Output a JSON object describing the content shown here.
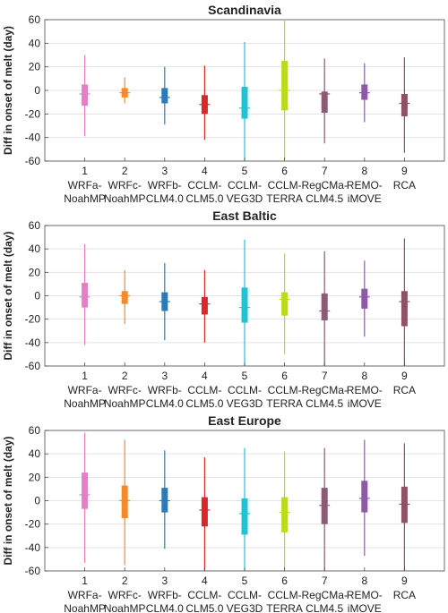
{
  "chart_data": [
    {
      "type": "box",
      "title": "Scandinavia",
      "ylabel": "Diff in onset of melt (day)",
      "ylim": [
        -60,
        60
      ],
      "yticks": [
        -60,
        -40,
        -20,
        0,
        20,
        40,
        60
      ],
      "grid": true,
      "categories": [
        "1",
        "2",
        "3",
        "4",
        "5",
        "6",
        "7",
        "8",
        "9"
      ],
      "category_labels": [
        [
          "WRFa-",
          "NoahMP"
        ],
        [
          "WRFc-",
          "NoahMP"
        ],
        [
          "WRFb-",
          "CLM4.0"
        ],
        [
          "CCLM-",
          "CLM5.0"
        ],
        [
          "CCLM-",
          "VEG3D"
        ],
        [
          "CCLM-",
          "TERRA"
        ],
        [
          "RegCMa-",
          "CLM4.5"
        ],
        [
          "REMO-",
          "iMOVE"
        ],
        [
          "RCA"
        ]
      ],
      "series": [
        {
          "whisker_low": -39,
          "q1": -13,
          "median": -3,
          "q3": 5,
          "whisker_high": 30
        },
        {
          "whisker_low": -11,
          "q1": -6,
          "median": -2,
          "q3": 2,
          "whisker_high": 11
        },
        {
          "whisker_low": -29,
          "q1": -11,
          "median": -6,
          "q3": 2,
          "whisker_high": 20
        },
        {
          "whisker_low": -42,
          "q1": -20,
          "median": -12,
          "q3": -4,
          "whisker_high": 21
        },
        {
          "whisker_low": -60,
          "q1": -24,
          "median": -15,
          "q3": 3,
          "whisker_high": 41
        },
        {
          "whisker_low": -60,
          "q1": -17,
          "median": 0,
          "q3": 25,
          "whisker_high": 60
        },
        {
          "whisker_low": -45,
          "q1": -19,
          "median": -3,
          "q3": -1,
          "whisker_high": 27
        },
        {
          "whisker_low": -27,
          "q1": -8,
          "median": -2,
          "q3": 5,
          "whisker_high": 23
        },
        {
          "whisker_low": -53,
          "q1": -22,
          "median": -11,
          "q3": -3,
          "whisker_high": 28
        }
      ]
    },
    {
      "type": "box",
      "title": "East Baltic",
      "ylabel": "Diff in onset of melt (day)",
      "ylim": [
        -60,
        60
      ],
      "yticks": [
        -60,
        -40,
        -20,
        0,
        20,
        40,
        60
      ],
      "grid": true,
      "categories": [
        "1",
        "2",
        "3",
        "4",
        "5",
        "6",
        "7",
        "8",
        "9"
      ],
      "category_labels": [
        [
          "WRFa-",
          "NoahMP"
        ],
        [
          "WRFc-",
          "NoahMP"
        ],
        [
          "WRFb-",
          "CLM4.0"
        ],
        [
          "CCLM-",
          "CLM5.0"
        ],
        [
          "CCLM-",
          "VEG3D"
        ],
        [
          "CCLM-",
          "TERRA"
        ],
        [
          "RegCMa-",
          "CLM4.5"
        ],
        [
          "REMO-",
          "iMOVE"
        ],
        [
          "RCA"
        ]
      ],
      "series": [
        {
          "whisker_low": -42,
          "q1": -10,
          "median": -1,
          "q3": 11,
          "whisker_high": 44
        },
        {
          "whisker_low": -24,
          "q1": -7,
          "median": 0,
          "q3": 4,
          "whisker_high": 22
        },
        {
          "whisker_low": -38,
          "q1": -13,
          "median": -5,
          "q3": 3,
          "whisker_high": 28
        },
        {
          "whisker_low": -40,
          "q1": -16,
          "median": -7,
          "q3": -1,
          "whisker_high": 22
        },
        {
          "whisker_low": -60,
          "q1": -23,
          "median": -10,
          "q3": 7,
          "whisker_high": 48
        },
        {
          "whisker_low": -50,
          "q1": -17,
          "median": -3,
          "q3": 3,
          "whisker_high": 36
        },
        {
          "whisker_low": -60,
          "q1": -21,
          "median": -13,
          "q3": 2,
          "whisker_high": 38
        },
        {
          "whisker_low": -35,
          "q1": -11,
          "median": -1,
          "q3": 6,
          "whisker_high": 30
        },
        {
          "whisker_low": -60,
          "q1": -26,
          "median": -5,
          "q3": 4,
          "whisker_high": 49
        }
      ]
    },
    {
      "type": "box",
      "title": "East Europe",
      "ylabel": "Diff in onset of melt (day)",
      "ylim": [
        -60,
        60
      ],
      "yticks": [
        -60,
        -40,
        -20,
        0,
        20,
        40,
        60
      ],
      "grid": true,
      "categories": [
        "1",
        "2",
        "3",
        "4",
        "5",
        "6",
        "7",
        "8",
        "9"
      ],
      "category_labels": [
        [
          "WRFa-",
          "NoahMP"
        ],
        [
          "WRFc-",
          "NoahMP"
        ],
        [
          "WRFb-",
          "CLM4.0"
        ],
        [
          "CCLM-",
          "CLM5.0"
        ],
        [
          "CCLM-",
          "VEG3D"
        ],
        [
          "CCLM-",
          "TERRA"
        ],
        [
          "RegCMa-",
          "CLM4.5"
        ],
        [
          "REMO-",
          "iMOVE"
        ],
        [
          "RCA"
        ]
      ],
      "series": [
        {
          "whisker_low": -53,
          "q1": -7,
          "median": 5,
          "q3": 24,
          "whisker_high": 58
        },
        {
          "whisker_low": -55,
          "q1": -15,
          "median": 0,
          "q3": 13,
          "whisker_high": 52
        },
        {
          "whisker_low": -41,
          "q1": -10,
          "median": 0,
          "q3": 11,
          "whisker_high": 43
        },
        {
          "whisker_low": -60,
          "q1": -22,
          "median": -8,
          "q3": 3,
          "whisker_high": 37
        },
        {
          "whisker_low": -60,
          "q1": -29,
          "median": -11,
          "q3": 2,
          "whisker_high": 45
        },
        {
          "whisker_low": -60,
          "q1": -27,
          "median": -10,
          "q3": 3,
          "whisker_high": 42
        },
        {
          "whisker_low": -60,
          "q1": -20,
          "median": -4,
          "q3": 11,
          "whisker_high": 45
        },
        {
          "whisker_low": -47,
          "q1": -10,
          "median": 2,
          "q3": 17,
          "whisker_high": 52
        },
        {
          "whisker_low": -60,
          "q1": -19,
          "median": -3,
          "q3": 12,
          "whisker_high": 49
        }
      ]
    }
  ],
  "colors": [
    "#e97cc3",
    "#f5892b",
    "#2b7bba",
    "#d42a2c",
    "#20c3d6",
    "#bada1c",
    "#8c5a74",
    "#8d5aa8",
    "#8e5264"
  ]
}
